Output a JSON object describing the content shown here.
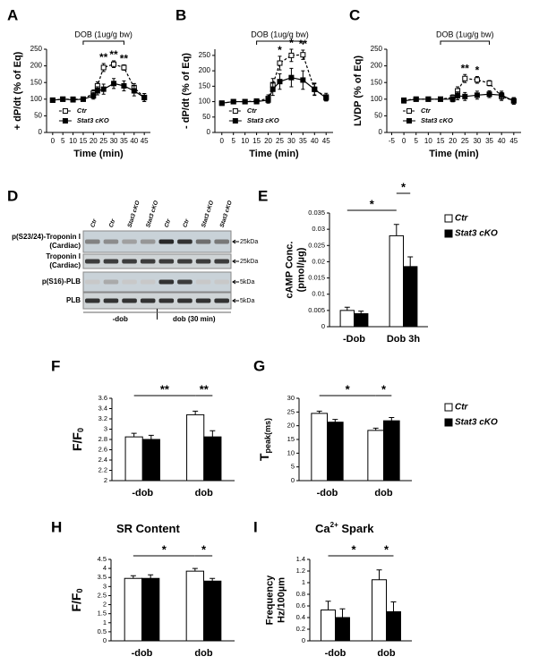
{
  "chart_data": [
    {
      "panel": "A",
      "type": "line",
      "ylabel": [
        "+ dP/dt (% of Eq)"
      ],
      "xlabel": "Time (min)",
      "annotation": "DOB (1ug/g bw)",
      "annotation_span": [
        15,
        35
      ],
      "x": [
        0,
        5,
        10,
        15,
        20,
        22,
        25,
        30,
        35,
        40,
        45
      ],
      "xlim": [
        -3,
        48
      ],
      "xticks": [
        0,
        5,
        10,
        15,
        20,
        25,
        30,
        35,
        40,
        45
      ],
      "ylim": [
        0,
        250
      ],
      "yticks": [
        0,
        50,
        100,
        150,
        200,
        250
      ],
      "series": [
        {
          "name": "Ctr",
          "color": "#000000",
          "marker": "open-square",
          "dashed": true,
          "values": [
            97,
            100,
            100,
            100,
            118,
            140,
            195,
            205,
            195,
            135,
            105
          ],
          "errors": [
            5,
            5,
            5,
            5,
            10,
            12,
            12,
            10,
            8,
            12,
            12
          ]
        },
        {
          "name": "Stat3 cKO",
          "color": "#000000",
          "marker": "filled-square",
          "dashed": false,
          "values": [
            97,
            100,
            98,
            100,
            110,
            125,
            130,
            147,
            140,
            125,
            105
          ],
          "errors": [
            5,
            5,
            5,
            5,
            10,
            12,
            15,
            15,
            15,
            15,
            12
          ]
        }
      ],
      "significance": [
        null,
        null,
        null,
        null,
        null,
        null,
        "**",
        "**",
        "**",
        null,
        null
      ],
      "legend": "lower right"
    },
    {
      "panel": "B",
      "type": "line",
      "ylabel": [
        "- dP/dt (% of Eq)"
      ],
      "xlabel": "Time (min)",
      "annotation": "DOB (1ug/g bw)",
      "annotation_span": [
        15,
        35
      ],
      "x": [
        0,
        5,
        10,
        15,
        20,
        22,
        25,
        30,
        35,
        40,
        45
      ],
      "xlim": [
        -3,
        48
      ],
      "xticks": [
        0,
        5,
        10,
        15,
        20,
        25,
        30,
        35,
        40,
        45
      ],
      "ylim": [
        0,
        270
      ],
      "yticks": [
        0,
        50,
        100,
        150,
        200,
        250
      ],
      "series": [
        {
          "name": "Ctr",
          "color": "#000000",
          "marker": "open-square",
          "dashed": true,
          "values": [
            95,
            100,
            100,
            102,
            110,
            155,
            225,
            250,
            252,
            140,
            115
          ],
          "errors": [
            5,
            5,
            5,
            5,
            12,
            20,
            22,
            20,
            15,
            18,
            12
          ]
        },
        {
          "name": "Stat3 cKO",
          "color": "#000000",
          "marker": "filled-square",
          "dashed": false,
          "values": [
            95,
            100,
            100,
            100,
            105,
            140,
            165,
            178,
            170,
            140,
            112
          ],
          "errors": [
            5,
            5,
            5,
            5,
            10,
            20,
            25,
            30,
            30,
            20,
            10
          ]
        }
      ],
      "significance": [
        null,
        null,
        null,
        null,
        null,
        null,
        "*",
        "*",
        "**",
        null,
        null
      ],
      "legend": "lower right"
    },
    {
      "panel": "C",
      "type": "line",
      "ylabel": [
        "LVDP (% of Eq)"
      ],
      "xlabel": "Time (min)",
      "annotation": "DOB (1ug/g bw)",
      "annotation_span": [
        15,
        35
      ],
      "x": [
        0,
        5,
        10,
        15,
        20,
        22,
        25,
        30,
        35,
        40,
        45
      ],
      "xlim": [
        -7,
        48
      ],
      "xticks": [
        -5,
        0,
        5,
        10,
        15,
        20,
        25,
        30,
        35,
        40,
        45
      ],
      "ylim": [
        0,
        250
      ],
      "yticks": [
        0,
        50,
        100,
        150,
        200,
        250
      ],
      "series": [
        {
          "name": "Ctr",
          "color": "#000000",
          "marker": "open-square",
          "dashed": true,
          "values": [
            97,
            100,
            100,
            100,
            105,
            125,
            162,
            158,
            148,
            108,
            95
          ],
          "errors": [
            5,
            5,
            5,
            5,
            8,
            12,
            12,
            10,
            8,
            12,
            10
          ]
        },
        {
          "name": "Stat3 cKO",
          "color": "#000000",
          "marker": "filled-square",
          "dashed": false,
          "values": [
            95,
            100,
            100,
            100,
            100,
            110,
            108,
            112,
            115,
            112,
            95
          ],
          "errors": [
            5,
            5,
            5,
            5,
            8,
            12,
            12,
            12,
            10,
            12,
            10
          ]
        }
      ],
      "significance": [
        null,
        null,
        null,
        null,
        null,
        null,
        "**",
        "*",
        null,
        null,
        null
      ],
      "legend": "lower right"
    },
    {
      "panel": "D",
      "type": "blot",
      "lanes": [
        "Ctr",
        "Ctr",
        "Stat3 cKO",
        "Stat3 cKO",
        "Ctr",
        "Ctr",
        "Stat3 cKO",
        "Stat3 cKO"
      ],
      "rows": [
        {
          "label": [
            "p(S23/24)-Troponin I",
            "(Cardiac)"
          ],
          "marker": "25kDa"
        },
        {
          "label": [
            "Troponin I",
            "(Cardiac)"
          ],
          "marker": "25kDa"
        },
        {
          "label": [
            "p(S16)-PLB"
          ],
          "marker": "5kDa"
        },
        {
          "label": [
            "PLB"
          ],
          "marker": "5kDa"
        }
      ],
      "groups": [
        "-dob",
        "dob (30 min)"
      ]
    },
    {
      "panel": "E",
      "type": "bar",
      "ylabel": [
        "cAMP Conc.",
        "(pmol/µg)"
      ],
      "categories": [
        "-Dob",
        "Dob 3h"
      ],
      "ylim": [
        0,
        0.035
      ],
      "yticks": [
        0,
        0.005,
        0.01,
        0.015,
        0.02,
        0.025,
        0.03,
        0.035
      ],
      "series": [
        {
          "name": "Ctr",
          "color": "#ffffff",
          "values": [
            0.005,
            0.028
          ],
          "errors": [
            0.001,
            0.0035
          ]
        },
        {
          "name": "Stat3 cKO",
          "color": "#000000",
          "values": [
            0.004,
            0.0185
          ],
          "errors": [
            0.0008,
            0.003
          ]
        }
      ],
      "brackets": [
        "*",
        "*"
      ],
      "legend": "outside right"
    },
    {
      "panel": "F",
      "type": "bar",
      "ylabel": [
        {
          "text": "F/F",
          "sub": "0"
        }
      ],
      "categories": [
        "-dob",
        "dob"
      ],
      "ylim": [
        2,
        3.6
      ],
      "yticks": [
        2,
        2.2,
        2.4,
        2.6,
        2.8,
        3,
        3.2,
        3.4,
        3.6
      ],
      "series": [
        {
          "name": "Ctr",
          "color": "#ffffff",
          "values": [
            2.85,
            3.28
          ],
          "errors": [
            0.07,
            0.07
          ]
        },
        {
          "name": "Stat3 cKO",
          "color": "#000000",
          "values": [
            2.8,
            2.85
          ],
          "errors": [
            0.08,
            0.12
          ]
        }
      ],
      "brackets": [
        "**",
        "**"
      ],
      "legend": "none"
    },
    {
      "panel": "G",
      "type": "bar",
      "ylabel": [
        {
          "text": "T",
          "sub": "peak(ms)"
        }
      ],
      "categories": [
        "-dob",
        "dob"
      ],
      "ylim": [
        0,
        30
      ],
      "yticks": [
        0,
        5,
        10,
        15,
        20,
        25,
        30
      ],
      "series": [
        {
          "name": "Ctr",
          "color": "#ffffff",
          "values": [
            24.5,
            18.3
          ],
          "errors": [
            0.8,
            0.8
          ]
        },
        {
          "name": "Stat3 cKO",
          "color": "#000000",
          "values": [
            21.3,
            21.8
          ],
          "errors": [
            1,
            1.2
          ]
        }
      ],
      "brackets": [
        "*",
        "*"
      ],
      "legend": "outside right"
    },
    {
      "panel": "H",
      "type": "bar",
      "title": "SR Content",
      "ylabel": [
        {
          "text": "F/F",
          "sub": "0"
        }
      ],
      "categories": [
        "-dob",
        "dob"
      ],
      "ylim": [
        0,
        4.5
      ],
      "yticks": [
        0,
        0.5,
        1,
        1.5,
        2,
        2.5,
        3,
        3.5,
        4,
        4.5
      ],
      "series": [
        {
          "name": "Ctr",
          "color": "#ffffff",
          "values": [
            3.45,
            3.85
          ],
          "errors": [
            0.15,
            0.15
          ]
        },
        {
          "name": "Stat3 cKO",
          "color": "#000000",
          "values": [
            3.45,
            3.3
          ],
          "errors": [
            0.2,
            0.15
          ]
        }
      ],
      "brackets": [
        "*",
        "*"
      ],
      "legend": "none"
    },
    {
      "panel": "I",
      "type": "bar",
      "title": "Ca",
      "title_sup": "2+",
      "title_rest": " Spark",
      "ylabel": [
        "Frequency",
        "Hz/100µm"
      ],
      "categories": [
        "-dob",
        "dob"
      ],
      "ylim": [
        0,
        1.4
      ],
      "yticks": [
        0,
        0.2,
        0.4,
        0.6,
        0.8,
        1,
        1.2,
        1.4
      ],
      "series": [
        {
          "name": "Ctr",
          "color": "#ffffff",
          "values": [
            0.53,
            1.05
          ],
          "errors": [
            0.15,
            0.17
          ]
        },
        {
          "name": "Stat3 cKO",
          "color": "#000000",
          "values": [
            0.4,
            0.5
          ],
          "errors": [
            0.15,
            0.17
          ]
        }
      ],
      "brackets": [
        "*",
        "*"
      ],
      "legend": "none"
    }
  ]
}
